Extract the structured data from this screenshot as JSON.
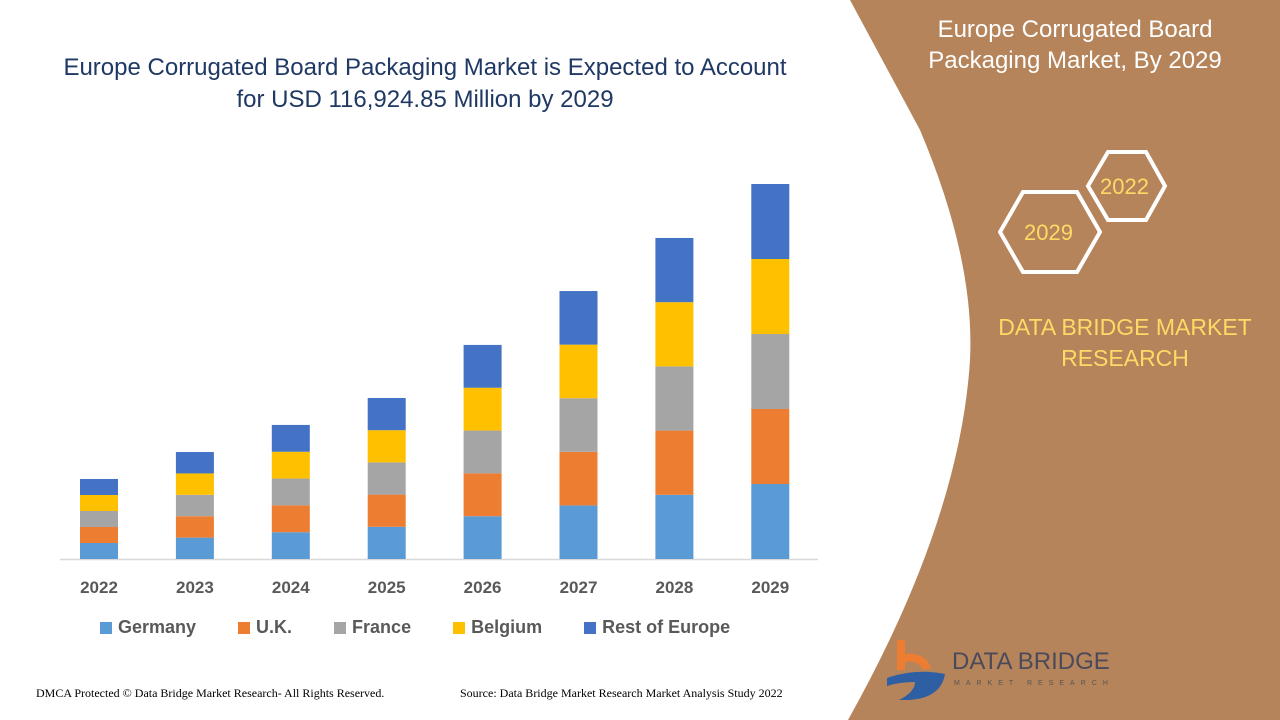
{
  "colors": {
    "panel": "#b5845a",
    "title": "#1f3864",
    "accent": "#ffd966"
  },
  "right_panel": {
    "title": "Europe Corrugated Board Packaging Market, By 2029",
    "hex_years": [
      "2022",
      "2029"
    ],
    "brand": "DATA BRIDGE MARKET RESEARCH"
  },
  "logo": {
    "name": "DATA BRIDGE",
    "sub": "MARKET RESEARCH"
  },
  "footer": {
    "left": "DMCA Protected © Data Bridge Market Research- All Rights Reserved.",
    "right": "Source: Data Bridge Market Research Market Analysis Study 2022"
  },
  "chart_data": {
    "type": "bar",
    "stacked": true,
    "title": "Europe Corrugated Board Packaging Market is Expected to Account for USD 116,924.85 Million by 2029",
    "categories": [
      "2022",
      "2023",
      "2024",
      "2025",
      "2026",
      "2027",
      "2028",
      "2029"
    ],
    "ylim": [
      0,
      116925
    ],
    "grid": false,
    "legend_position": "bottom",
    "series": [
      {
        "name": "Germany",
        "color": "#5b9bd5",
        "values": [
          4990,
          6670,
          8360,
          10040,
          13350,
          16710,
          20020,
          23385
        ]
      },
      {
        "name": "U.K.",
        "color": "#ed7d31",
        "values": [
          4990,
          6670,
          8360,
          10040,
          13350,
          16710,
          20020,
          23385
        ]
      },
      {
        "name": "France",
        "color": "#a5a5a5",
        "values": [
          4990,
          6670,
          8360,
          10040,
          13350,
          16710,
          20020,
          23385
        ]
      },
      {
        "name": "Belgium",
        "color": "#ffc000",
        "values": [
          4990,
          6670,
          8360,
          10040,
          13350,
          16710,
          20020,
          23385
        ]
      },
      {
        "name": "Rest of Europe",
        "color": "#4472c4",
        "values": [
          4990,
          6670,
          8360,
          10040,
          13350,
          16710,
          20020,
          23385
        ]
      }
    ]
  }
}
